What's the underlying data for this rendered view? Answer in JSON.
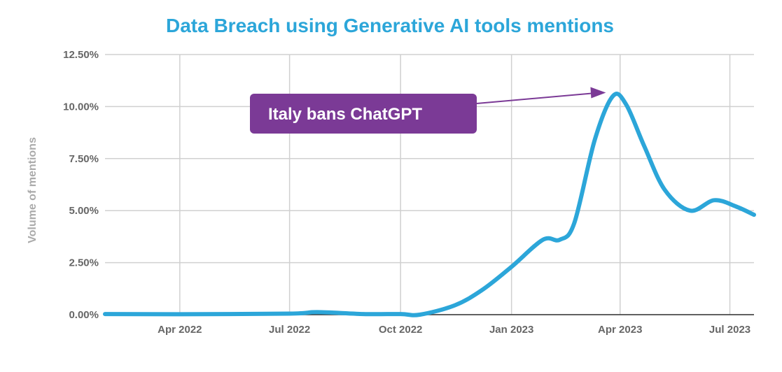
{
  "chart_data": {
    "type": "line",
    "title": "Data Breach using Generative AI tools mentions",
    "xlabel": "",
    "ylabel": "Volume of mentions",
    "ylim": [
      0,
      12.5
    ],
    "xlim": [
      "2022-01-29",
      "2023-07-21"
    ],
    "y_ticks": [
      "0.00%",
      "2.50%",
      "5.00%",
      "7.50%",
      "10.00%",
      "12.50%"
    ],
    "x_ticks": [
      {
        "label": "Apr 2022",
        "date": "2022-04-01"
      },
      {
        "label": "Jul 2022",
        "date": "2022-07-01"
      },
      {
        "label": "Oct 2022",
        "date": "2022-10-01"
      },
      {
        "label": "Jan 2023",
        "date": "2023-01-01"
      },
      {
        "label": "Apr 2023",
        "date": "2023-04-01"
      },
      {
        "label": "Jul 2023",
        "date": "2023-07-01"
      }
    ],
    "grid": true,
    "series_color": "#2ca6d9",
    "series": [
      {
        "x": [
          "2022-01-29",
          "2022-04-01",
          "2022-07-01",
          "2022-07-24",
          "2022-08-31",
          "2022-10-01",
          "2022-10-17",
          "2022-11-15",
          "2022-12-08",
          "2023-01-01",
          "2023-01-27",
          "2023-02-10",
          "2023-02-22",
          "2023-03-11",
          "2023-03-26",
          "2023-04-06",
          "2023-04-21",
          "2023-05-08",
          "2023-05-29",
          "2023-06-18",
          "2023-07-06",
          "2023-07-21"
        ],
        "y": [
          0.03,
          0.02,
          0.05,
          0.12,
          0.03,
          0.03,
          0.0,
          0.45,
          1.2,
          2.3,
          3.6,
          3.6,
          4.4,
          8.4,
          10.5,
          10.1,
          8.1,
          6.0,
          5.0,
          5.5,
          5.2,
          4.8
        ]
      }
    ],
    "annotations": [
      {
        "text": "Italy bans ChatGPT",
        "date": "2023-03-26",
        "value": 10.5,
        "color": "#7b3a96"
      }
    ]
  }
}
